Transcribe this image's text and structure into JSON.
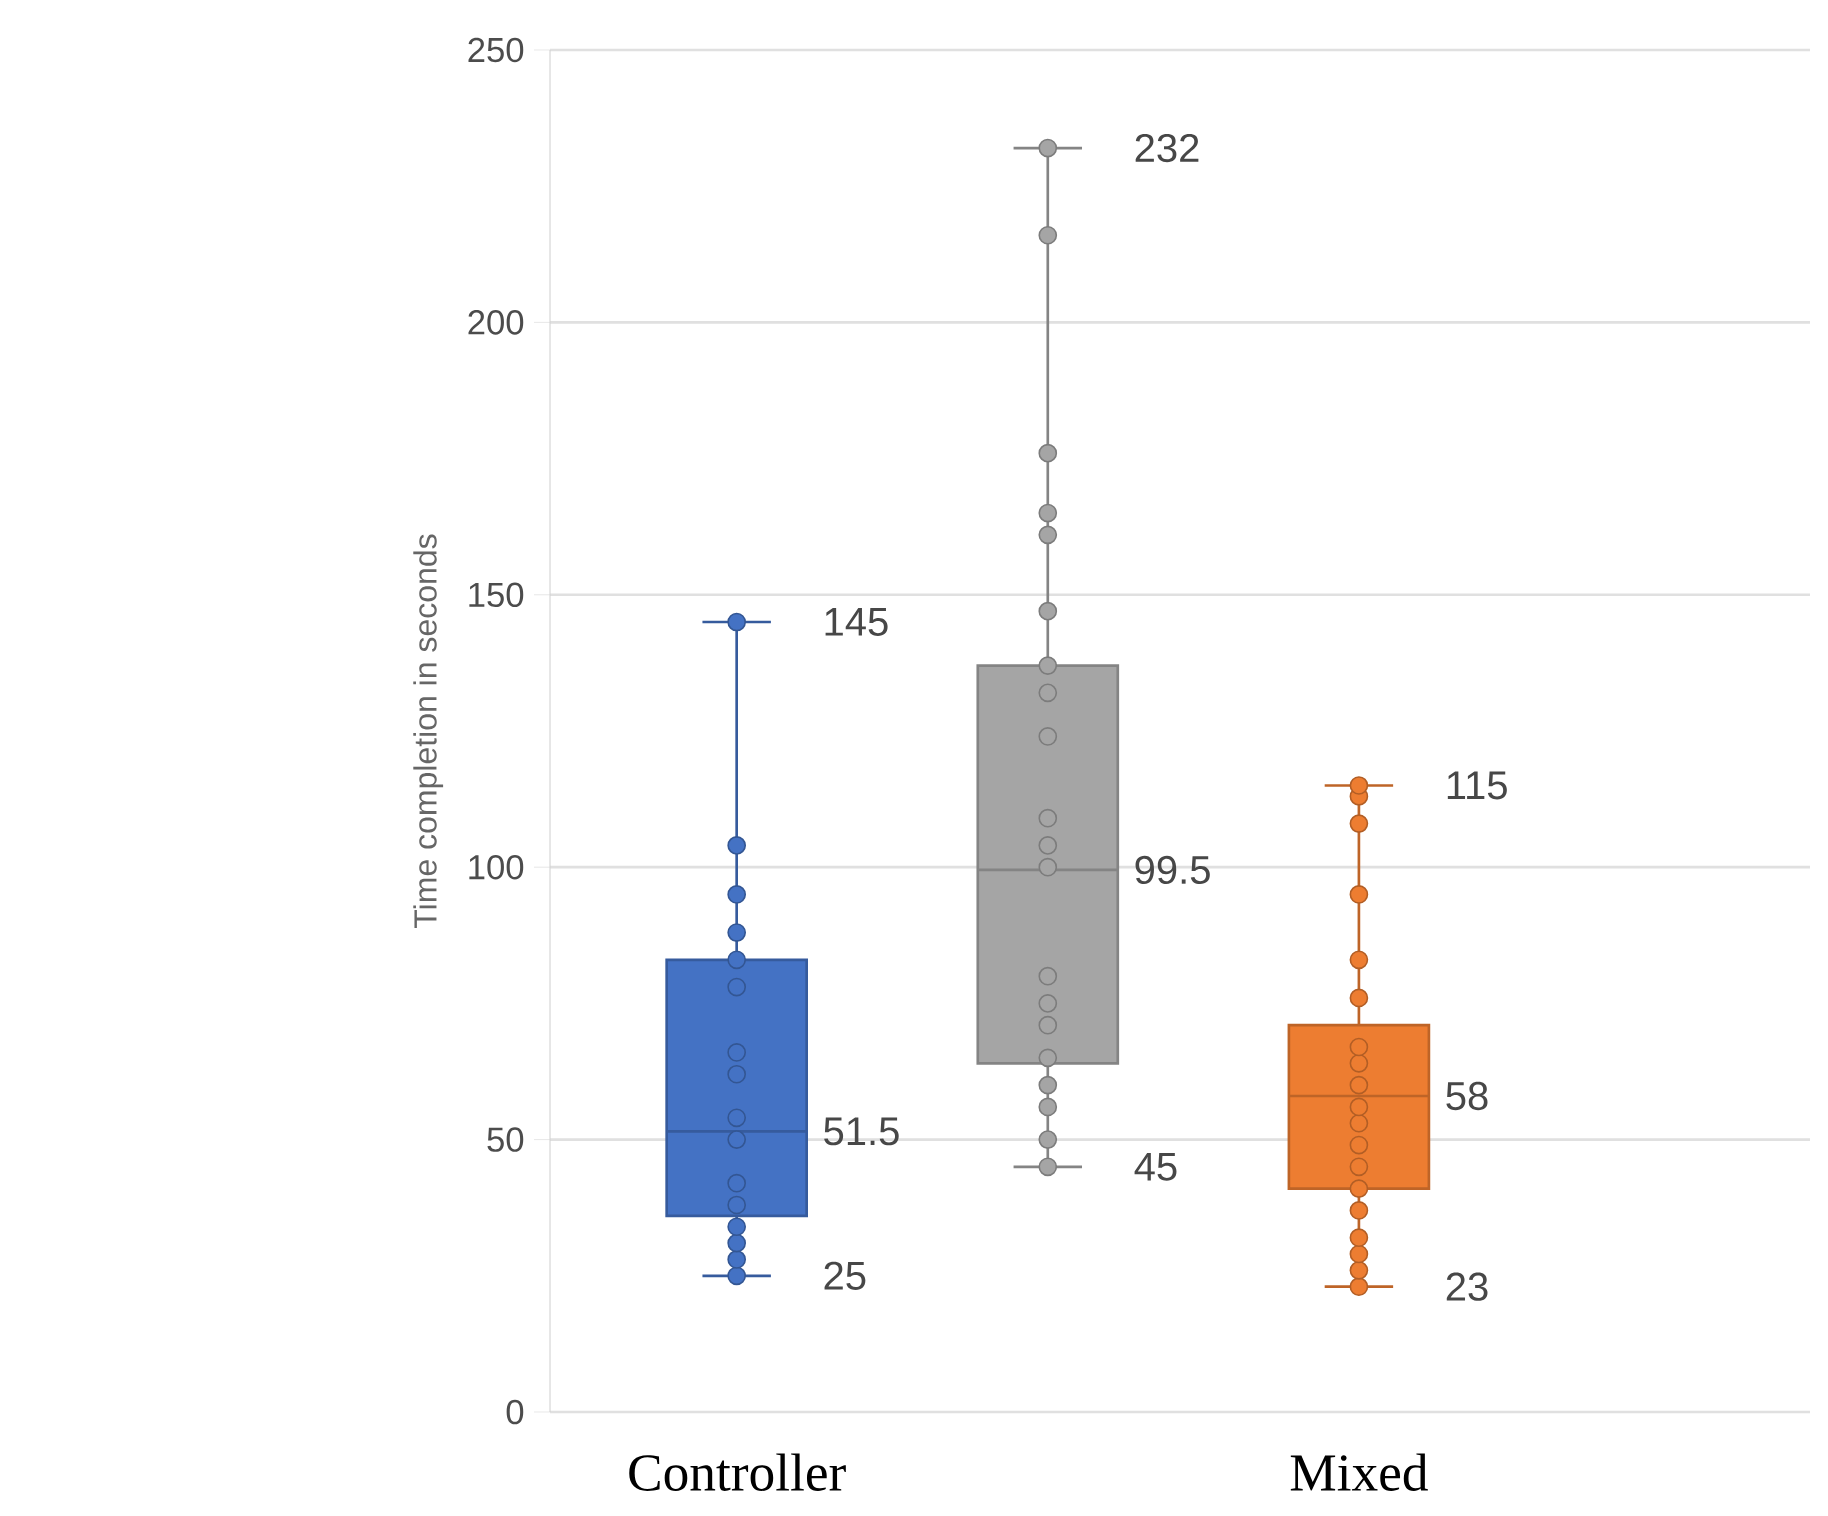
{
  "chart_data": {
    "type": "box",
    "ylabel": "Time completion in seconds",
    "categories": [
      "Controller",
      null,
      "Mixed"
    ],
    "ylim": [
      0,
      250
    ],
    "yticks": [
      0,
      50,
      100,
      150,
      200,
      250
    ],
    "grid": "y",
    "colors": [
      "#4472c4",
      "#a5a5a5",
      "#ed7d31"
    ],
    "boxes": [
      {
        "low": 25,
        "q1": 36,
        "median": 51.5,
        "q3": 83,
        "high": 145
      },
      {
        "low": 45,
        "q1": 64,
        "median": 99.5,
        "q3": 137,
        "high": 232
      },
      {
        "low": 23,
        "q1": 41,
        "median": 58,
        "q3": 71,
        "high": 115
      }
    ],
    "marker": "circle",
    "series": [
      {
        "type": "scatter",
        "colors": [
          "#4472c4",
          "#a5a5a5",
          "#ed7d31"
        ],
        "values": [
          25,
          45,
          23
        ]
      },
      {
        "type": "scatter",
        "colors": [
          "#4472c4",
          "#a5a5a5",
          "#ed7d31"
        ],
        "values": [
          28,
          50,
          26
        ]
      },
      {
        "type": "scatter",
        "colors": [
          "#4472c4",
          "#a5a5a5",
          "#ed7d31"
        ],
        "values": [
          31,
          56,
          29
        ]
      },
      {
        "type": "scatter",
        "colors": [
          "#4472c4",
          "#a5a5a5",
          "#ed7d31"
        ],
        "values": [
          34,
          60,
          32
        ]
      },
      {
        "type": "scatter",
        "colors": [
          "#4472c4",
          "#a5a5a5",
          "#ed7d31"
        ],
        "values": [
          38,
          65,
          37
        ]
      },
      {
        "type": "scatter",
        "colors": [
          "#4472c4",
          "#a5a5a5",
          "#ed7d31"
        ],
        "values": [
          42,
          71,
          41
        ]
      },
      {
        "type": "scatter",
        "colors": [
          "#4472c4",
          "#a5a5a5",
          "#ed7d31"
        ],
        "values": [
          50,
          75,
          45
        ]
      },
      {
        "type": "scatter",
        "colors": [
          "#4472c4",
          "#a5a5a5",
          "#ed7d31"
        ],
        "values": [
          54,
          80,
          49
        ]
      },
      {
        "type": "scatter",
        "colors": [
          "#4472c4",
          "#a5a5a5",
          "#ed7d31"
        ],
        "values": [
          62,
          100,
          53
        ]
      },
      {
        "type": "scatter",
        "colors": [
          "#4472c4",
          "#a5a5a5",
          "#ed7d31"
        ],
        "values": [
          66,
          104,
          56
        ]
      },
      {
        "type": "scatter",
        "colors": [
          "#4472c4",
          "#a5a5a5",
          "#ed7d31"
        ],
        "values": [
          78,
          109,
          60
        ]
      },
      {
        "type": "scatter",
        "colors": [
          "#4472c4",
          "#a5a5a5",
          "#ed7d31"
        ],
        "values": [
          83,
          124,
          64
        ]
      },
      {
        "type": "scatter",
        "colors": [
          "#4472c4",
          "#a5a5a5",
          "#ed7d31"
        ],
        "values": [
          88,
          132,
          67
        ]
      },
      {
        "type": "scatter",
        "colors": [
          "#4472c4",
          "#a5a5a5",
          "#ed7d31"
        ],
        "values": [
          95,
          137,
          76
        ]
      },
      {
        "type": "scatter",
        "colors": [
          "#4472c4",
          "#a5a5a5",
          "#ed7d31"
        ],
        "values": [
          104,
          147,
          83
        ]
      },
      {
        "type": "scatter",
        "colors": [
          "#4472c4",
          "#a5a5a5",
          "#ed7d31"
        ],
        "values": [
          145,
          161,
          95
        ]
      },
      {
        "type": "scatter",
        "colors": [
          "#4472c4",
          "#a5a5a5",
          "#ed7d31"
        ],
        "values": [
          null,
          165,
          108
        ]
      },
      {
        "type": "scatter",
        "colors": [
          "#4472c4",
          "#a5a5a5",
          "#ed7d31"
        ],
        "values": [
          null,
          176,
          113
        ]
      },
      {
        "type": "scatter",
        "colors": [
          "#4472c4",
          "#a5a5a5",
          "#ed7d31"
        ],
        "values": [
          null,
          216,
          115
        ]
      },
      {
        "type": "scatter",
        "colors": [
          "#4472c4",
          "#a5a5a5",
          "#ed7d31"
        ],
        "values": [
          null,
          232,
          null
        ]
      }
    ],
    "annotations": [
      {
        "text": "145",
        "x": "Controller",
        "y": 145
      },
      {
        "text": "51.5",
        "x": "Controller",
        "y": 51.5
      },
      {
        "text": "25",
        "x": "Controller",
        "y": 25
      },
      "232",
      "99.5",
      "45",
      {
        "text": "115",
        "x": "Mixed",
        "y": 115
      },
      {
        "text": "58",
        "x": "Mixed",
        "y": 58
      },
      {
        "text": "23",
        "x": "Mixed",
        "y": 23
      }
    ]
  }
}
